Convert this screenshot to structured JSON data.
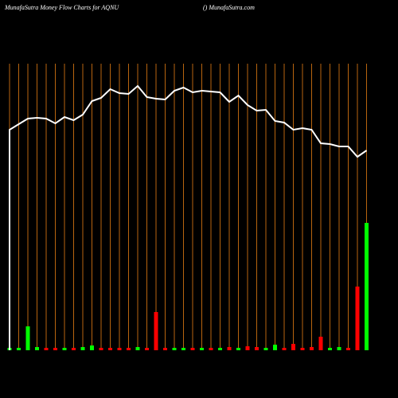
{
  "chart_data": {
    "type": "line",
    "title": "MunafaSutra  Money Flow  Charts for AQNU",
    "source": "() MunafaSutra.com",
    "series": [
      {
        "name": "Money Flow",
        "color": "#ffffff",
        "values": [
          277,
          284,
          291,
          292,
          291,
          285,
          293,
          289,
          296,
          313,
          317,
          328,
          323,
          322,
          332,
          318,
          316,
          315,
          326,
          330,
          324,
          326,
          325,
          324,
          312,
          320,
          308,
          301,
          302,
          288,
          286,
          277,
          279,
          277,
          260,
          259,
          256,
          256,
          243,
          251
        ]
      }
    ],
    "volume": {
      "values": [
        3,
        3,
        30,
        4,
        3,
        3,
        3,
        3,
        4,
        6,
        3,
        3,
        3,
        3,
        4,
        3,
        48,
        3,
        3,
        3,
        3,
        3,
        3,
        3,
        4,
        3,
        5,
        4,
        3,
        7,
        3,
        8,
        3,
        4,
        17,
        3,
        4,
        3,
        80,
        160
      ],
      "colors": [
        "#00ff00",
        "#00ff00",
        "#00ff00",
        "#00ff00",
        "#ff0000",
        "#ff0000",
        "#00ff00",
        "#ff0000",
        "#00ff00",
        "#00ff00",
        "#ff0000",
        "#ff0000",
        "#ff0000",
        "#ff0000",
        "#00ff00",
        "#ff0000",
        "#ff0000",
        "#ff0000",
        "#00ff00",
        "#00ff00",
        "#ff0000",
        "#00ff00",
        "#ff0000",
        "#00ff00",
        "#ff0000",
        "#00ff00",
        "#ff0000",
        "#ff0000",
        "#00ff00",
        "#00ff00",
        "#ff0000",
        "#ff0000",
        "#ff0000",
        "#ff0000",
        "#ff0000",
        "#00ff00",
        "#00ff00",
        "#ff0000",
        "#ff0000",
        "#00ff00"
      ]
    },
    "ylim": [
      0,
      360
    ],
    "grid_color": "#b8650f"
  }
}
